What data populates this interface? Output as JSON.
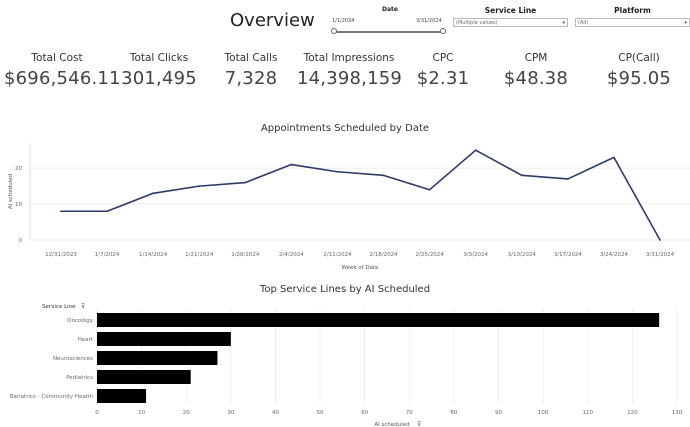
{
  "header": {
    "title": "Overview"
  },
  "filters": {
    "date": {
      "label": "Date",
      "min": "1/1/2024",
      "max": "3/31/2024"
    },
    "service_line": {
      "label": "Service Line",
      "value": "(Multiple values)"
    },
    "platform": {
      "label": "Platform",
      "value": "(All)"
    }
  },
  "kpis": [
    {
      "label": "Total Cost",
      "value": "$696,546.11"
    },
    {
      "label": "Total Clicks",
      "value": "301,495"
    },
    {
      "label": "Total Calls",
      "value": "7,328"
    },
    {
      "label": "Total Impressions",
      "value": "14,398,159"
    },
    {
      "label": "CPC",
      "value": "$2.31"
    },
    {
      "label": "CPM",
      "value": "$48.38"
    },
    {
      "label": "CP(Call)",
      "value": "$95.05"
    }
  ],
  "chart_data": [
    {
      "type": "line",
      "title": "Appointments Scheduled by Date",
      "xlabel": "Week of Date",
      "ylabel": "AI scheduled",
      "categories": [
        "12/31/2023",
        "1/7/2024",
        "1/14/2024",
        "1/21/2024",
        "1/28/2024",
        "2/4/2024",
        "2/11/2024",
        "2/18/2024",
        "2/25/2024",
        "3/3/2024",
        "3/10/2024",
        "3/17/2024",
        "3/24/2024",
        "3/31/2024"
      ],
      "values": [
        8,
        8,
        13,
        15,
        16,
        21,
        19,
        18,
        14,
        25,
        18,
        17,
        23,
        0
      ],
      "yticks": [
        0,
        10,
        20
      ],
      "ylim": [
        0,
        27
      ],
      "color": "#2b3a67",
      "grid": true
    },
    {
      "type": "bar",
      "orientation": "horizontal",
      "title": "Top Service Lines by AI Scheduled",
      "category_header": "Service Line",
      "xlabel": "AI scheduled",
      "categories": [
        "Oncology",
        "Heart",
        "Neurosciences",
        "Pediatrics",
        "Bariatrics - Community Health"
      ],
      "values": [
        126,
        30,
        27,
        21,
        11
      ],
      "xticks": [
        0,
        10,
        20,
        30,
        40,
        50,
        60,
        70,
        80,
        90,
        100,
        110,
        120,
        130
      ],
      "xlim": [
        0,
        130
      ],
      "color": "#000000",
      "grid": true
    }
  ]
}
